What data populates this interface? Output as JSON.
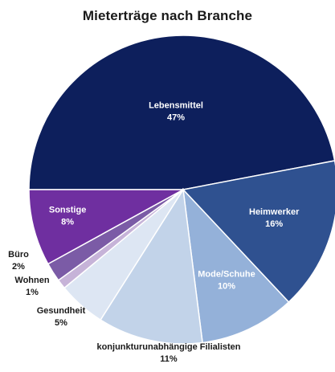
{
  "chart_data": {
    "type": "pie",
    "title": "Mieterträge nach Branche",
    "slices": [
      {
        "label": "Lebensmittel",
        "value": 47,
        "display": "47%",
        "color": "#0d1f5c",
        "text_color": "#ffffff"
      },
      {
        "label": "Heimwerker",
        "value": 16,
        "display": "16%",
        "color": "#2f5190",
        "text_color": "#ffffff"
      },
      {
        "label": "Mode/Schuhe",
        "value": 10,
        "display": "10%",
        "color": "#94b1d9",
        "text_color": "#ffffff"
      },
      {
        "label": "konjunkturunabhängige Filialisten",
        "value": 11,
        "display": "11%",
        "color": "#c2d3e9",
        "text_color": "#1a1a1a"
      },
      {
        "label": "Gesundheit",
        "value": 5,
        "display": "5%",
        "color": "#dde6f3",
        "text_color": "#1a1a1a"
      },
      {
        "label": "Wohnen",
        "value": 1,
        "display": "1%",
        "color": "#c6b3d8",
        "text_color": "#1a1a1a"
      },
      {
        "label": "Büro",
        "value": 2,
        "display": "2%",
        "color": "#7b5ba6",
        "text_color": "#1a1a1a"
      },
      {
        "label": "Sonstige",
        "value": 8,
        "display": "8%",
        "color": "#6f2fa0",
        "text_color": "#ffffff"
      }
    ]
  }
}
